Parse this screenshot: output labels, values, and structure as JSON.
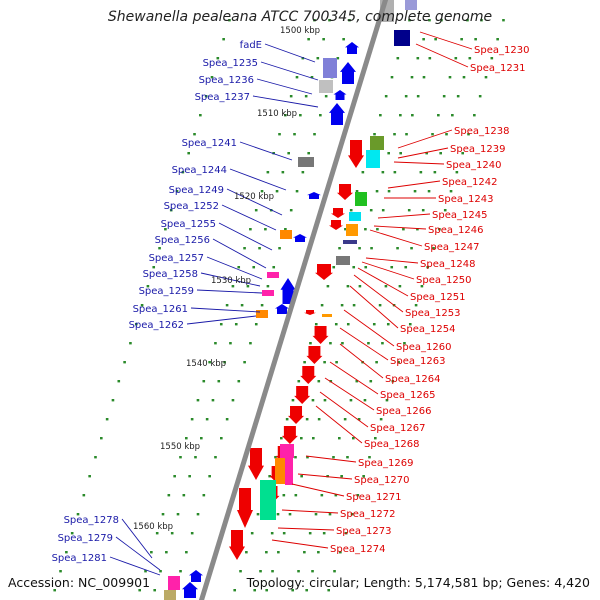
{
  "title": "Shewanella pealeana ATCC 700345, complete genome",
  "footer": {
    "accession": "Accession: NC_009901",
    "topology": "Topology: circular; Length: 5,174,581 bp; Genes: 4,420"
  },
  "colors": {
    "left_label": "#1a1aa8",
    "right_label": "#dd0000",
    "backbone": "#8a8a8a",
    "tick": "#2a8a2a"
  },
  "kbp_ticks": [
    "1500 kbp",
    "1510 kbp",
    "1520 kbp",
    "1530 kbp",
    "1540 kbp",
    "1550 kbp",
    "1560 kbp"
  ],
  "left_labels": [
    "fadE",
    "Spea_1235",
    "Spea_1236",
    "Spea_1237",
    "Spea_1241",
    "Spea_1244",
    "Spea_1249",
    "Spea_1252",
    "Spea_1255",
    "Spea_1256",
    "Spea_1257",
    "Spea_1258",
    "Spea_1259",
    "Spea_1261",
    "Spea_1262",
    "Spea_1278",
    "Spea_1279",
    "Spea_1281"
  ],
  "right_labels": [
    "Spea_1230",
    "Spea_1231",
    "Spea_1238",
    "Spea_1239",
    "Spea_1240",
    "Spea_1242",
    "Spea_1243",
    "Spea_1245",
    "Spea_1246",
    "Spea_1247",
    "Spea_1248",
    "Spea_1250",
    "Spea_1251",
    "Spea_1253",
    "Spea_1254",
    "Spea_1260",
    "Spea_1263",
    "Spea_1264",
    "Spea_1265",
    "Spea_1266",
    "Spea_1267",
    "Spea_1268",
    "Spea_1269",
    "Spea_1270",
    "Spea_1271",
    "Spea_1272",
    "Spea_1273",
    "Spea_1274"
  ]
}
